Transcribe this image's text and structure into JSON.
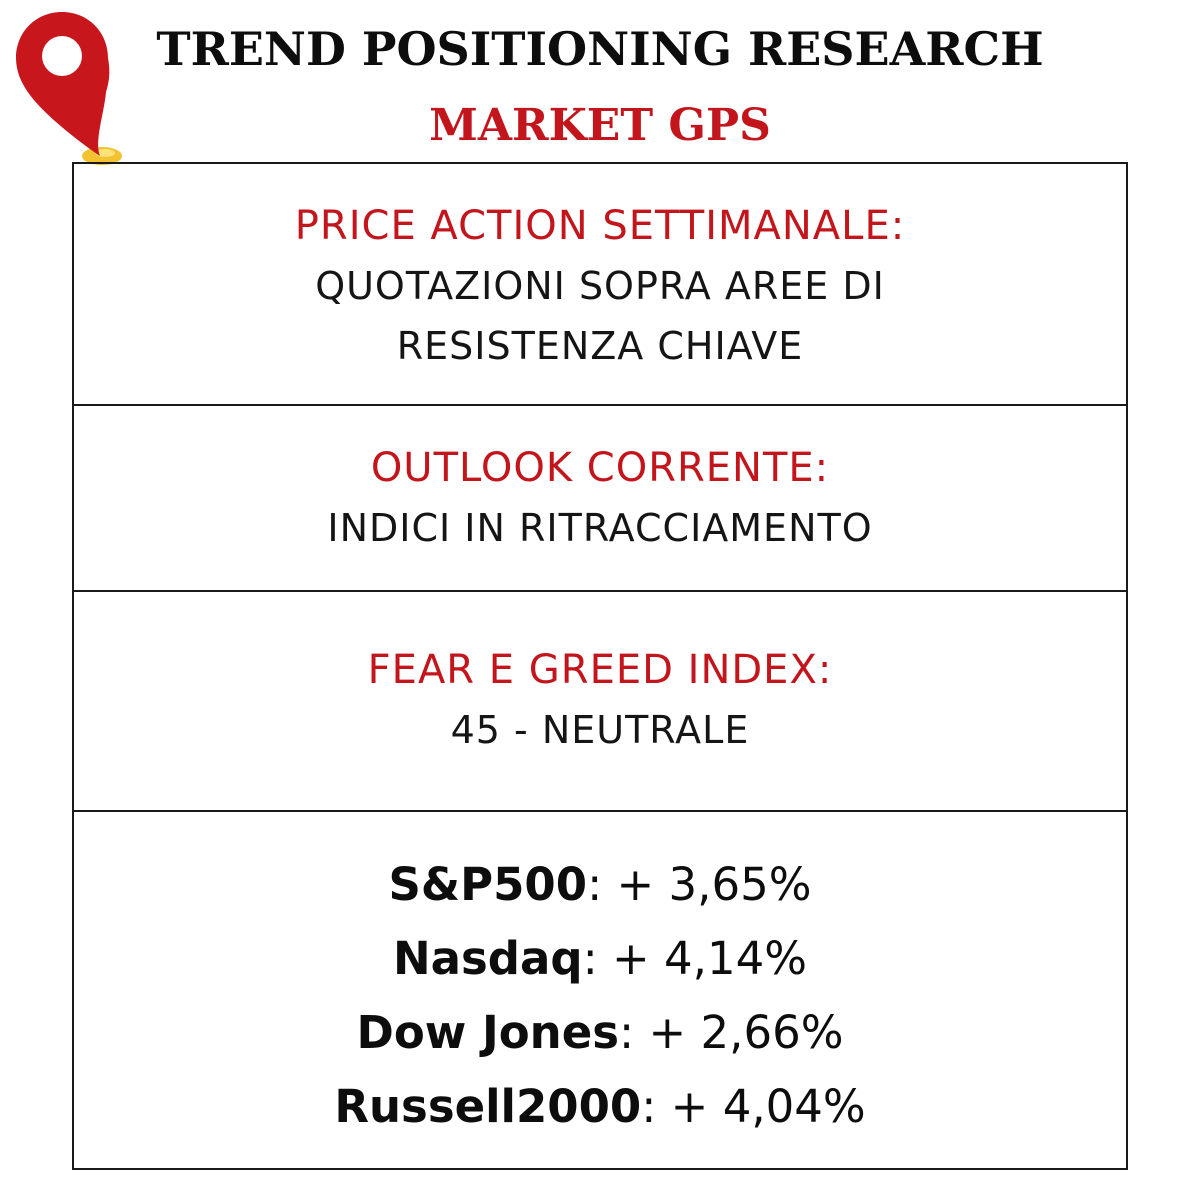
{
  "colors": {
    "accent": "#c2161c",
    "pin": "#c8161d",
    "pin_base": "#f2c230",
    "text": "#111111"
  },
  "header": {
    "title": "TREND POSITIONING RESEARCH",
    "subtitle": "MARKET GPS",
    "icon": "map-pin-icon"
  },
  "sections": [
    {
      "label": "PRICE ACTION SETTIMANALE:",
      "lines": [
        "QUOTAZIONI SOPRA AREE DI",
        "RESISTENZA CHIAVE"
      ]
    },
    {
      "label": "OUTLOOK CORRENTE:",
      "lines": [
        "INDICI IN RITRACCIAMENTO"
      ]
    },
    {
      "label": "FEAR E GREED INDEX:",
      "lines": [
        "45 - NEUTRALE"
      ]
    }
  ],
  "indices": [
    {
      "name": "S&P500",
      "value": ": + 3,65%"
    },
    {
      "name": "Nasdaq",
      "value": ": + 4,14%"
    },
    {
      "name": "Dow Jones",
      "value": ": + 2,66%"
    },
    {
      "name": "Russell2000",
      "value": ": + 4,04%"
    }
  ]
}
